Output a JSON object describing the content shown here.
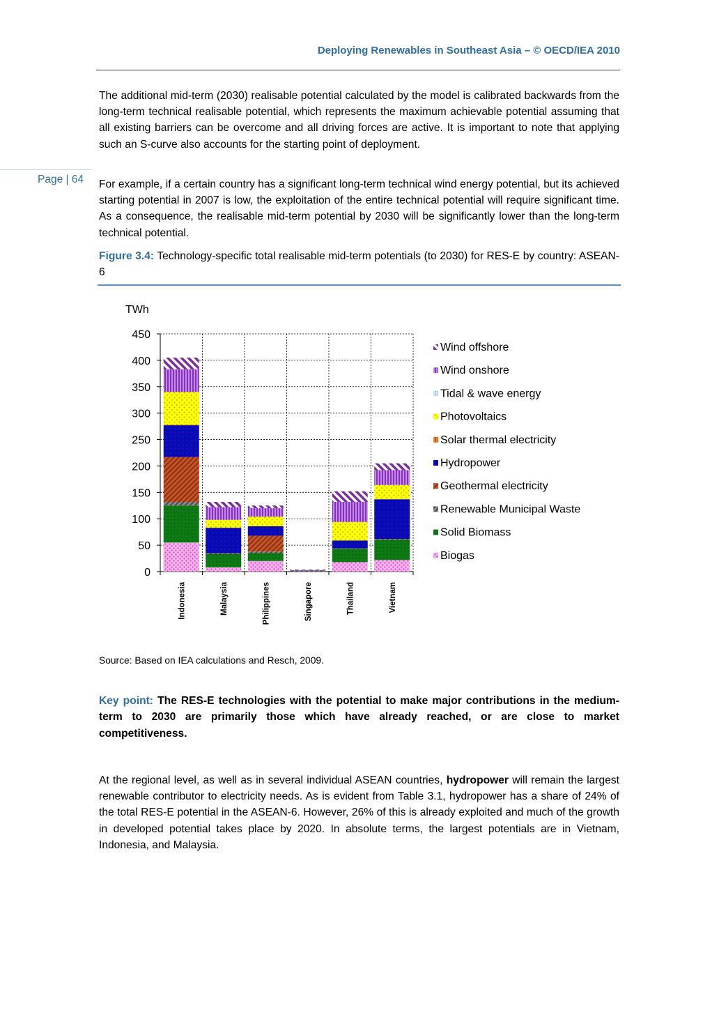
{
  "header": {
    "running_title": "Deploying Renewables in Southeast Asia – © OECD/IEA 2010"
  },
  "page_label": "Page | 64",
  "paragraphs": {
    "p1": "The additional mid-term (2030) realisable potential calculated by the model is calibrated backwards from the long-term technical realisable potential, which represents the maximum achievable potential assuming that all existing barriers can be overcome and all driving forces are active. It is important to note that applying such an S-curve also accounts for the starting point of deployment.",
    "p2": "For example, if a certain country has a significant long-term technical wind energy potential, but its achieved starting potential in 2007 is low, the exploitation of the entire technical potential will require significant time. As a consequence, the realisable mid-term potential by 2030 will be significantly lower than the long-term technical potential.",
    "p3_before": "At the regional level, as well as in several individual ASEAN countries, ",
    "p3_bold": "hydropower",
    "p3_after": " will remain the largest renewable contributor to electricity needs. As is evident from Table 3.1, hydropower has a share of 24% of the total RES-E potential in the ASEAN-6. However, 26% of this is already exploited and much of the growth in developed potential takes place by 2020. In absolute terms, the largest potentials are in Vietnam, Indonesia, and Malaysia."
  },
  "figure": {
    "number": "Figure 3.4:",
    "caption": "Technology-specific total realisable mid-term potentials (to 2030) for RES-E by country: ASEAN-6",
    "source": "Source: Based on IEA calculations and Resch, 2009."
  },
  "key_point": {
    "label": "Key point:",
    "text": "The RES-E technologies with the potential to make major contributions in the medium-term to 2030 are primarily those which have already reached, or are close to market competitiveness."
  },
  "chart_data": {
    "type": "bar",
    "stacked": true,
    "ylabel": "TWh",
    "ylim": [
      0,
      450
    ],
    "yticks": [
      0,
      50,
      100,
      150,
      200,
      250,
      300,
      350,
      400,
      450
    ],
    "grid": true,
    "legend_position": "right",
    "categories": [
      "Indonesia",
      "Malaysia",
      "Philippines",
      "Singapore",
      "Thailand",
      "Vietnam"
    ],
    "series": [
      {
        "name": "Biogas",
        "color": "#e87fd8",
        "values": [
          55,
          8,
          20,
          0,
          18,
          22
        ]
      },
      {
        "name": "Solid Biomass",
        "color": "#0e7a14",
        "values": [
          70,
          25,
          15,
          0,
          25,
          38
        ]
      },
      {
        "name": "Renewable Municipal Waste",
        "color": "#6e6e6e",
        "values": [
          7,
          2,
          3,
          2,
          1,
          2
        ]
      },
      {
        "name": "Geothermal electricity",
        "color": "#b5451b",
        "values": [
          85,
          0,
          30,
          0,
          0,
          0
        ]
      },
      {
        "name": "Hydropower",
        "color": "#0a0ab4",
        "values": [
          60,
          48,
          18,
          0,
          15,
          75
        ]
      },
      {
        "name": "Solar thermal electricity",
        "color": "#e07010",
        "values": [
          1,
          0,
          0,
          0,
          0,
          0
        ]
      },
      {
        "name": "Photovoltaics",
        "color": "#ffff00",
        "values": [
          62,
          15,
          18,
          0,
          35,
          27
        ]
      },
      {
        "name": "Tidal & wave energy",
        "color": "#aad4f0",
        "values": [
          0,
          0,
          0,
          0,
          0,
          0
        ]
      },
      {
        "name": "Wind onshore",
        "color": "#a14cd6",
        "values": [
          43,
          24,
          16,
          1,
          38,
          28
        ]
      },
      {
        "name": "Wind offshore",
        "color": "#7a2c9e",
        "values": [
          22,
          10,
          5,
          1,
          20,
          13
        ]
      }
    ]
  }
}
